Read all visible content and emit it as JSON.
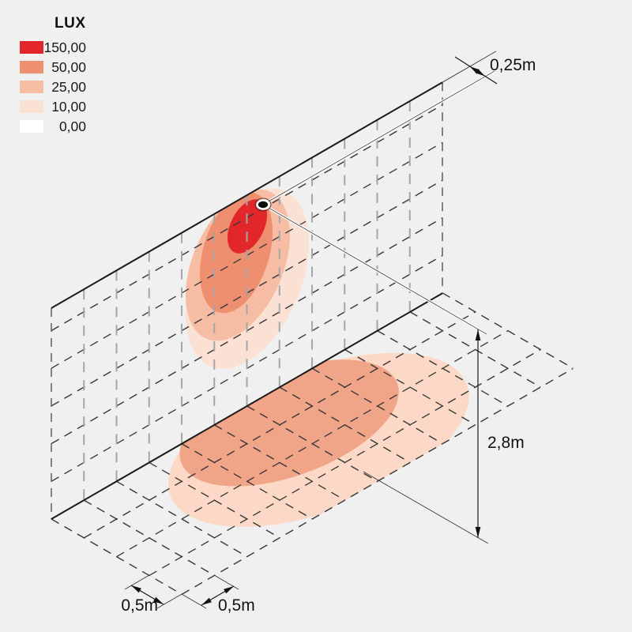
{
  "legend": {
    "title": "LUX",
    "entries": [
      {
        "value": "150,00",
        "color": "#e2262a"
      },
      {
        "value": "50,00",
        "color": "#ee8f70"
      },
      {
        "value": "25,00",
        "color": "#f6bda4"
      },
      {
        "value": "10,00",
        "color": "#fbe1d4"
      },
      {
        "value": "0,00",
        "color": "#ffffff"
      }
    ]
  },
  "dimensions": {
    "luminaire_offset": "0,25m",
    "mounting_height": "2,8m",
    "floor_cell_depth": "0,5m",
    "floor_cell_width": "0,5m"
  },
  "colors": {
    "background": "#f0f0f0",
    "lux_150": "#e2262a",
    "lux_50": "#ee8f70",
    "lux_25": "#f6bda4",
    "lux_10": "#fbe1d4",
    "lux_0": "#ffffff",
    "floor_25": "#f1a588",
    "floor_10": "#fbd9c6",
    "grid_dark": "#383838",
    "grid_light": "#a6a6a6"
  },
  "isolux_diagram": {
    "type": "isolux-heatmap",
    "unit": "lux",
    "legend_levels": [
      150,
      50,
      25,
      10,
      0
    ],
    "wall_contour_levels_lux": [
      150,
      50,
      25,
      10
    ],
    "floor_contour_levels_lux": [
      25,
      10
    ],
    "grid_cell_size_m": 0.5,
    "luminaire_offset_from_wall_top_m": 0.25,
    "luminaire_mounting_height_m": 2.8
  }
}
